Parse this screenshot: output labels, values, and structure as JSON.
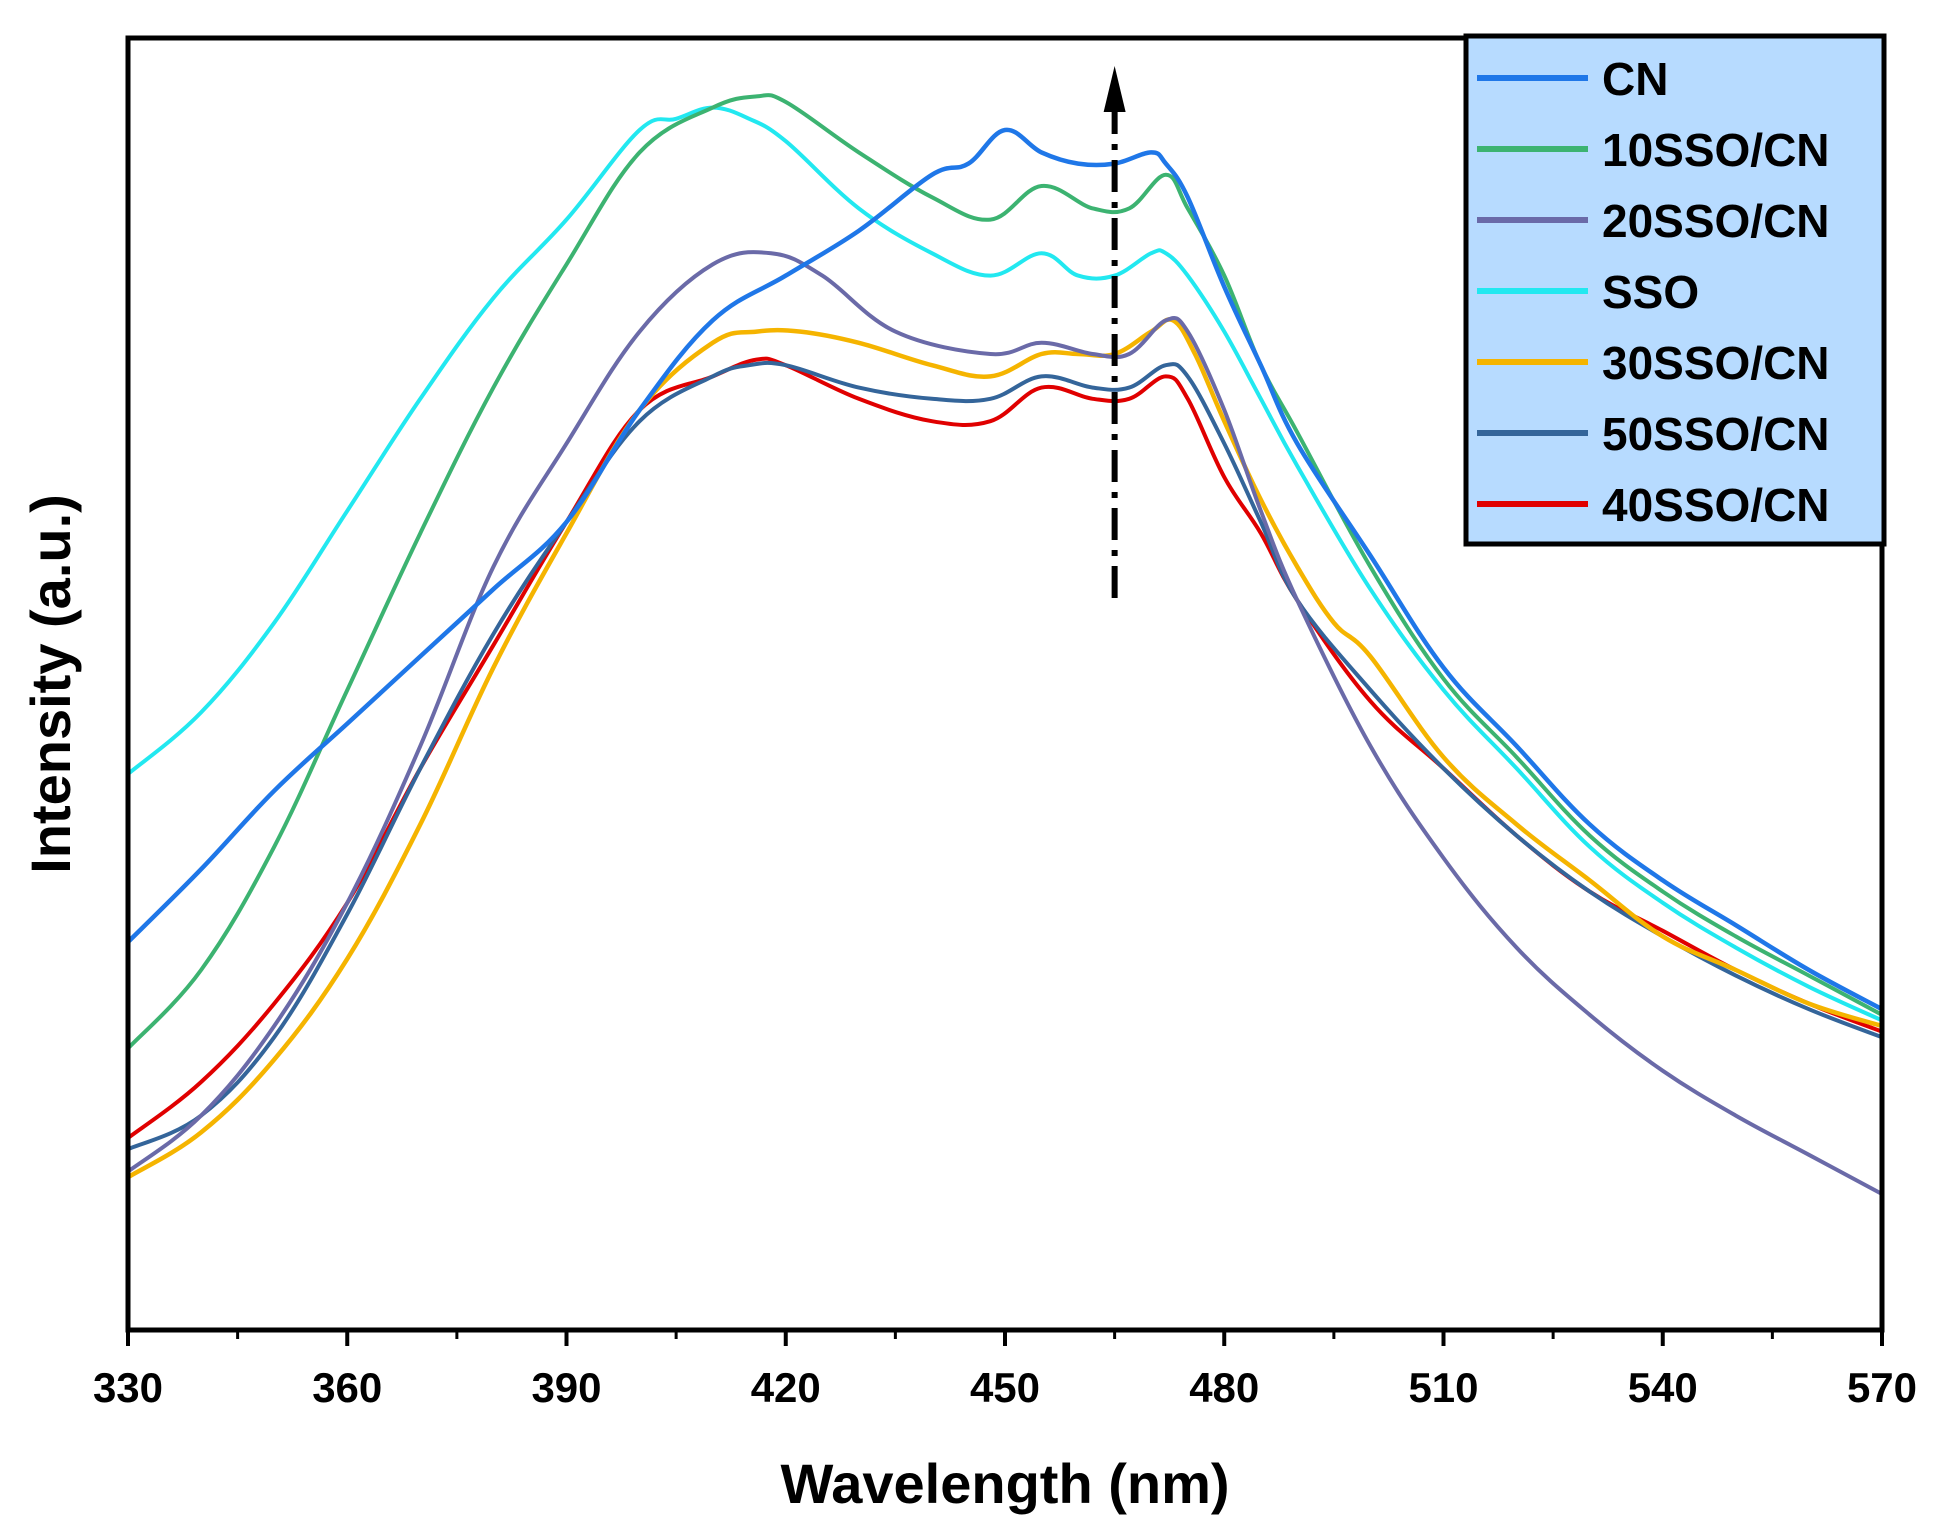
{
  "chart_data": {
    "type": "line",
    "title": "",
    "xlabel": "Wavelength (nm)",
    "ylabel": "Intensity (a.u.)",
    "xlim": [
      330,
      570
    ],
    "ylim": [
      0,
      100
    ],
    "xticks": [
      330,
      360,
      390,
      420,
      450,
      480,
      510,
      540,
      570
    ],
    "yticks_shown": false,
    "grid": false,
    "legend_position": "top-right",
    "annotation": "dash-dot upward arrow at about 465 nm",
    "series": [
      {
        "name": "CN",
        "color": "#1f77e8",
        "width": 4.5,
        "x": [
          330,
          340,
          350,
          360,
          370,
          380,
          390,
          400,
          410,
          420,
          430,
          440,
          445,
          450,
          455,
          460,
          465,
          470,
          472,
          475,
          480,
          485,
          490,
          500,
          510,
          520,
          530,
          540,
          550,
          560,
          570
        ],
        "y": [
          27.5,
          34,
          41,
          47,
          53,
          59,
          65,
          75,
          83,
          87,
          91,
          96,
          97,
          100,
          98,
          97,
          97,
          98,
          97,
          94,
          86,
          79,
          72,
          62,
          52,
          45,
          38,
          33,
          29,
          25,
          21.5
        ]
      },
      {
        "name": "10SSO/CN",
        "color": "#3cb371",
        "width": 4,
        "x": [
          330,
          340,
          350,
          360,
          370,
          380,
          390,
          400,
          410,
          416,
          420,
          430,
          440,
          448,
          455,
          462,
          467,
          472,
          475,
          480,
          485,
          490,
          500,
          510,
          520,
          530,
          540,
          550,
          560,
          570
        ],
        "y": [
          18,
          25,
          36,
          50,
          64,
          77,
          88,
          98,
          102,
          103,
          102.5,
          98,
          94,
          92,
          95,
          93,
          93,
          96,
          93,
          87,
          79,
          73,
          61,
          51,
          44,
          37,
          32,
          28,
          24.5,
          21
        ]
      },
      {
        "name": "20SSO/CN",
        "color": "#6a6aa8",
        "width": 4,
        "x": [
          330,
          340,
          350,
          360,
          370,
          380,
          390,
          400,
          410,
          418,
          425,
          435,
          448,
          455,
          462,
          467,
          472,
          475,
          480,
          485,
          490,
          500,
          510,
          520,
          530,
          540,
          550,
          560,
          570
        ],
        "y": [
          7,
          12,
          20,
          31,
          45,
          61,
          72,
          82,
          88,
          89,
          87,
          82,
          80,
          81,
          80,
          80,
          83,
          82,
          75,
          66,
          58,
          45,
          35,
          27,
          21,
          16,
          12,
          8.5,
          5
        ]
      },
      {
        "name": "SSO",
        "color": "#22e8f0",
        "width": 4,
        "x": [
          330,
          340,
          350,
          360,
          370,
          380,
          390,
          400,
          405,
          410,
          415,
          420,
          430,
          440,
          448,
          455,
          460,
          465,
          470,
          472,
          475,
          480,
          485,
          490,
          500,
          510,
          520,
          530,
          540,
          550,
          560,
          570
        ],
        "y": [
          42.5,
          48,
          56,
          66,
          76,
          85,
          92,
          100,
          101,
          102,
          101,
          99,
          93,
          89,
          87,
          89,
          87,
          87,
          89,
          89,
          87,
          82,
          76,
          70,
          59,
          50,
          43,
          36,
          31,
          27,
          23.5,
          20.5
        ]
      },
      {
        "name": "30SSO/CN",
        "color": "#f5b400",
        "width": 4.5,
        "x": [
          330,
          340,
          350,
          360,
          370,
          380,
          390,
          400,
          410,
          416,
          422,
          430,
          440,
          448,
          455,
          460,
          465,
          470,
          473,
          476,
          480,
          485,
          490,
          495,
          500,
          510,
          520,
          530,
          540,
          550,
          560,
          570
        ],
        "y": [
          6.5,
          10.5,
          17,
          26,
          38,
          52,
          64,
          75,
          81,
          82,
          82,
          81,
          79,
          78,
          80,
          80,
          80,
          82,
          83,
          80,
          74,
          67,
          61,
          56,
          53,
          44,
          38,
          33,
          28,
          25,
          22,
          20
        ]
      },
      {
        "name": "50SSO/CN",
        "color": "#34659a",
        "width": 4,
        "x": [
          330,
          340,
          350,
          360,
          370,
          380,
          390,
          400,
          410,
          415,
          420,
          430,
          440,
          448,
          455,
          462,
          467,
          472,
          475,
          480,
          485,
          490,
          500,
          510,
          520,
          530,
          540,
          550,
          560,
          570
        ],
        "y": [
          9,
          12,
          19,
          30,
          43,
          55,
          65,
          74,
          78,
          79,
          79,
          77,
          76,
          76,
          78,
          77,
          77,
          79,
          78,
          72,
          65,
          58,
          50,
          43,
          37,
          32,
          28,
          24.5,
          21.5,
          19
        ]
      },
      {
        "name": "40SSO/CN",
        "color": "#e00000",
        "width": 4,
        "x": [
          330,
          340,
          350,
          360,
          370,
          380,
          390,
          400,
          410,
          416,
          420,
          430,
          440,
          448,
          455,
          462,
          467,
          472,
          475,
          480,
          485,
          490,
          500,
          510,
          520,
          530,
          540,
          550,
          560,
          570
        ],
        "y": [
          10,
          15,
          22,
          31,
          43,
          54,
          65,
          75,
          78,
          79.5,
          79,
          76,
          74,
          74,
          77,
          76,
          76,
          78,
          76,
          69,
          64,
          58,
          49,
          43,
          37,
          32,
          28.5,
          25,
          22,
          19.5
        ]
      }
    ]
  }
}
